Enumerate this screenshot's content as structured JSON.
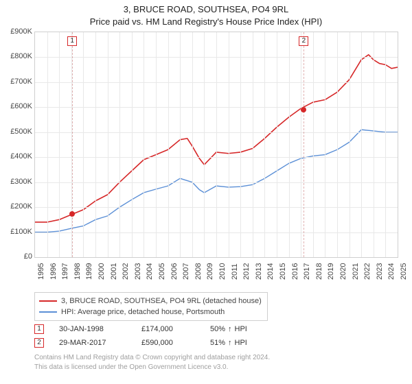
{
  "title_line1": "3, BRUCE ROAD, SOUTHSEA, PO4 9RL",
  "title_line2": "Price paid vs. HM Land Registry's House Price Index (HPI)",
  "chart": {
    "type": "line",
    "background_color": "#ffffff",
    "grid_color": "#e8e8e8",
    "axis_color": "#cfcfcf",
    "tick_font_color": "#444444",
    "tick_fontsize": 11,
    "title_fontsize": 13,
    "x_min": 1995,
    "x_max": 2025,
    "x_ticks": [
      1995,
      1996,
      1997,
      1998,
      1999,
      2000,
      2001,
      2002,
      2003,
      2004,
      2005,
      2006,
      2007,
      2008,
      2009,
      2010,
      2011,
      2012,
      2013,
      2014,
      2015,
      2016,
      2017,
      2018,
      2019,
      2020,
      2021,
      2022,
      2023,
      2024,
      2025
    ],
    "y_min": 0,
    "y_max": 900000,
    "y_tick_step": 100000,
    "y_tick_labels": [
      "£0",
      "£100K",
      "£200K",
      "£300K",
      "£400K",
      "£500K",
      "£600K",
      "£700K",
      "£800K",
      "£900K"
    ],
    "series": [
      {
        "key": "property",
        "label": "3, BRUCE ROAD, SOUTHSEA, PO4 9RL (detached house)",
        "color": "#d62728",
        "line_width": 1.6,
        "data": [
          {
            "x": 1995,
            "y": 140000
          },
          {
            "x": 1996,
            "y": 140000
          },
          {
            "x": 1997,
            "y": 150000
          },
          {
            "x": 1998,
            "y": 170000
          },
          {
            "x": 1999,
            "y": 190000
          },
          {
            "x": 2000,
            "y": 225000
          },
          {
            "x": 2001,
            "y": 250000
          },
          {
            "x": 2002,
            "y": 300000
          },
          {
            "x": 2003,
            "y": 345000
          },
          {
            "x": 2004,
            "y": 390000
          },
          {
            "x": 2005,
            "y": 410000
          },
          {
            "x": 2006,
            "y": 430000
          },
          {
            "x": 2007,
            "y": 470000
          },
          {
            "x": 2007.6,
            "y": 475000
          },
          {
            "x": 2008,
            "y": 445000
          },
          {
            "x": 2008.6,
            "y": 395000
          },
          {
            "x": 2009,
            "y": 370000
          },
          {
            "x": 2010,
            "y": 420000
          },
          {
            "x": 2011,
            "y": 415000
          },
          {
            "x": 2012,
            "y": 420000
          },
          {
            "x": 2013,
            "y": 435000
          },
          {
            "x": 2014,
            "y": 475000
          },
          {
            "x": 2015,
            "y": 520000
          },
          {
            "x": 2016,
            "y": 560000
          },
          {
            "x": 2017,
            "y": 595000
          },
          {
            "x": 2018,
            "y": 620000
          },
          {
            "x": 2019,
            "y": 630000
          },
          {
            "x": 2020,
            "y": 660000
          },
          {
            "x": 2021,
            "y": 710000
          },
          {
            "x": 2022,
            "y": 790000
          },
          {
            "x": 2022.6,
            "y": 810000
          },
          {
            "x": 2023,
            "y": 790000
          },
          {
            "x": 2023.5,
            "y": 775000
          },
          {
            "x": 2024,
            "y": 770000
          },
          {
            "x": 2024.5,
            "y": 755000
          },
          {
            "x": 2025,
            "y": 760000
          }
        ]
      },
      {
        "key": "hpi",
        "label": "HPI: Average price, detached house, Portsmouth",
        "color": "#5b8fd6",
        "line_width": 1.4,
        "data": [
          {
            "x": 1995,
            "y": 100000
          },
          {
            "x": 1996,
            "y": 100000
          },
          {
            "x": 1997,
            "y": 104000
          },
          {
            "x": 1998,
            "y": 115000
          },
          {
            "x": 1999,
            "y": 125000
          },
          {
            "x": 2000,
            "y": 150000
          },
          {
            "x": 2001,
            "y": 165000
          },
          {
            "x": 2002,
            "y": 200000
          },
          {
            "x": 2003,
            "y": 230000
          },
          {
            "x": 2004,
            "y": 258000
          },
          {
            "x": 2005,
            "y": 272000
          },
          {
            "x": 2006,
            "y": 285000
          },
          {
            "x": 2007,
            "y": 315000
          },
          {
            "x": 2008,
            "y": 300000
          },
          {
            "x": 2008.6,
            "y": 270000
          },
          {
            "x": 2009,
            "y": 258000
          },
          {
            "x": 2010,
            "y": 285000
          },
          {
            "x": 2011,
            "y": 280000
          },
          {
            "x": 2012,
            "y": 282000
          },
          {
            "x": 2013,
            "y": 290000
          },
          {
            "x": 2014,
            "y": 315000
          },
          {
            "x": 2015,
            "y": 345000
          },
          {
            "x": 2016,
            "y": 375000
          },
          {
            "x": 2017,
            "y": 395000
          },
          {
            "x": 2018,
            "y": 405000
          },
          {
            "x": 2019,
            "y": 410000
          },
          {
            "x": 2020,
            "y": 430000
          },
          {
            "x": 2021,
            "y": 460000
          },
          {
            "x": 2022,
            "y": 510000
          },
          {
            "x": 2023,
            "y": 505000
          },
          {
            "x": 2024,
            "y": 500000
          },
          {
            "x": 2025,
            "y": 500000
          }
        ]
      }
    ],
    "markers": [
      {
        "label": "1",
        "x": 1998.08,
        "y": 174000,
        "color": "#d62728",
        "dot_color": "#d62728"
      },
      {
        "label": "2",
        "x": 2017.24,
        "y": 590000,
        "color": "#d62728",
        "dot_color": "#d62728"
      }
    ]
  },
  "transactions": [
    {
      "idx": "1",
      "date": "30-JAN-1998",
      "price": "£174,000",
      "delta_pct": "50%",
      "delta_dir": "up",
      "delta_suffix": "HPI"
    },
    {
      "idx": "2",
      "date": "29-MAR-2017",
      "price": "£590,000",
      "delta_pct": "51%",
      "delta_dir": "up",
      "delta_suffix": "HPI"
    }
  ],
  "legend_box": {
    "border_color": "#cfcfcf"
  },
  "footer_line1": "Contains HM Land Registry data © Crown copyright and database right 2024.",
  "footer_line2": "This data is licensed under the Open Government Licence v3.0."
}
